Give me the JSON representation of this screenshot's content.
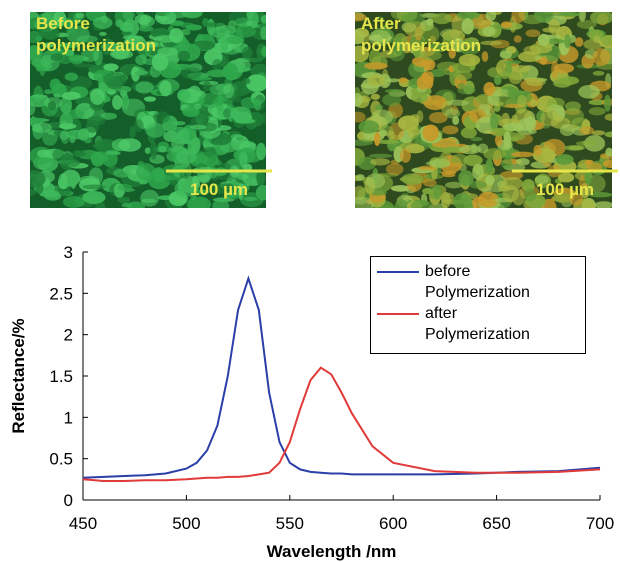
{
  "panels": [
    {
      "label_lines": [
        "Before",
        "polymerization"
      ],
      "scale": "100 µm"
    },
    {
      "label_lines": [
        "After",
        "polymerization"
      ],
      "scale": "100 µm"
    }
  ],
  "chart_data": {
    "type": "line",
    "xlabel": "Wavelength /nm",
    "ylabel": "Reflectance/%",
    "x": [
      450,
      460,
      470,
      480,
      490,
      500,
      505,
      510,
      515,
      520,
      525,
      530,
      535,
      540,
      545,
      550,
      555,
      560,
      565,
      570,
      575,
      580,
      590,
      600,
      620,
      640,
      660,
      680,
      700
    ],
    "series": [
      {
        "name": "before Polymerization",
        "color": "#2b3fa8",
        "values": [
          0.27,
          0.28,
          0.29,
          0.3,
          0.32,
          0.38,
          0.45,
          0.6,
          0.9,
          1.5,
          2.3,
          2.68,
          2.3,
          1.3,
          0.7,
          0.45,
          0.37,
          0.34,
          0.33,
          0.32,
          0.32,
          0.31,
          0.31,
          0.31,
          0.31,
          0.32,
          0.34,
          0.35,
          0.39
        ]
      },
      {
        "name": "after Polymerization",
        "color": "#e03a3a",
        "values": [
          0.25,
          0.23,
          0.23,
          0.24,
          0.24,
          0.25,
          0.26,
          0.27,
          0.27,
          0.28,
          0.28,
          0.29,
          0.31,
          0.33,
          0.45,
          0.7,
          1.1,
          1.45,
          1.6,
          1.52,
          1.3,
          1.05,
          0.65,
          0.45,
          0.35,
          0.33,
          0.33,
          0.34,
          0.37
        ]
      }
    ],
    "xlim": [
      450,
      700
    ],
    "xticks": [
      450,
      500,
      550,
      600,
      650,
      700
    ],
    "ylim": [
      0,
      3
    ],
    "yticks": [
      0,
      0.5,
      1,
      1.5,
      2,
      2.5,
      3
    ]
  }
}
